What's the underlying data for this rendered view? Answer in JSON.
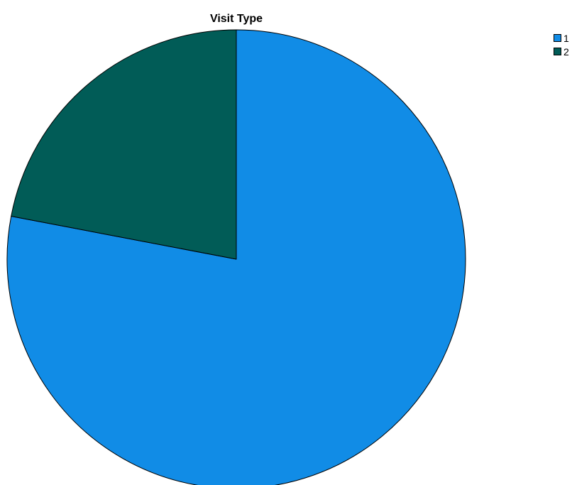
{
  "chart_data": {
    "type": "pie",
    "title": "Visit Type",
    "categories": [
      "1",
      "2"
    ],
    "values": [
      78,
      22
    ],
    "colors": [
      "#118CE6",
      "#015C57"
    ],
    "start_angle_deg": -90,
    "direction": "clockwise_from_top_for_first",
    "legend_position": "top-right",
    "slice_outline_color": "#000000"
  }
}
